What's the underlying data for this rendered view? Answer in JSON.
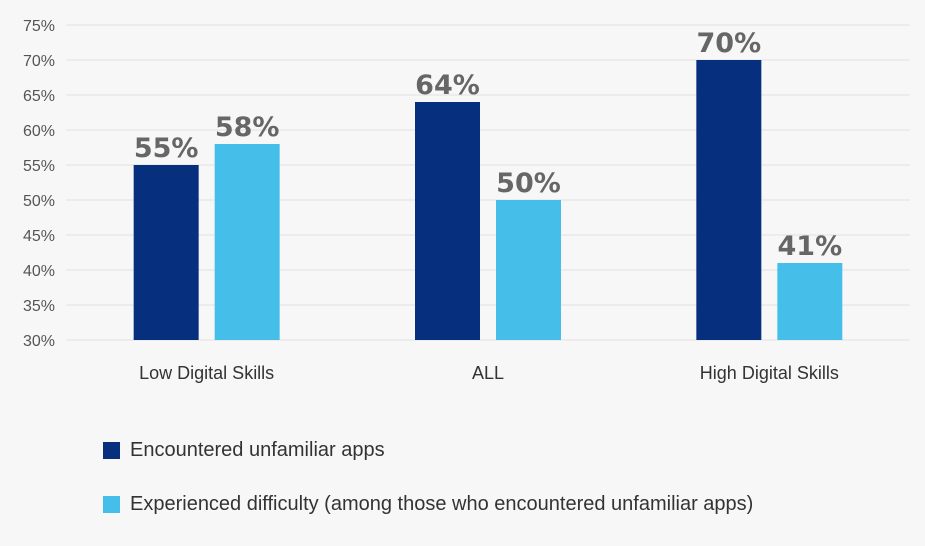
{
  "chart_data": {
    "type": "bar",
    "categories": [
      "Low Digital Skills",
      "ALL",
      "High Digital Skills"
    ],
    "series": [
      {
        "name": "Encountered unfamiliar apps",
        "values": [
          55,
          64,
          70
        ],
        "labels": [
          "55%",
          "64%",
          "70%"
        ],
        "color": "#06307e"
      },
      {
        "name": "Experienced difficulty (among those who encountered unfamiliar apps)",
        "values": [
          58,
          50,
          41
        ],
        "labels": [
          "58%",
          "50%",
          "41%"
        ],
        "color": "#45bfea"
      }
    ],
    "ylim": [
      30,
      75
    ],
    "yticks": [
      30,
      35,
      40,
      45,
      50,
      55,
      60,
      65,
      70,
      75
    ],
    "ytick_labels": [
      "30%",
      "35%",
      "40%",
      "45%",
      "50%",
      "55%",
      "60%",
      "65%",
      "70%",
      "75%"
    ],
    "grid": true,
    "gridline_color": "#e2e2e2",
    "legend_position": "bottom-left",
    "title": "",
    "xlabel": "",
    "ylabel": ""
  }
}
